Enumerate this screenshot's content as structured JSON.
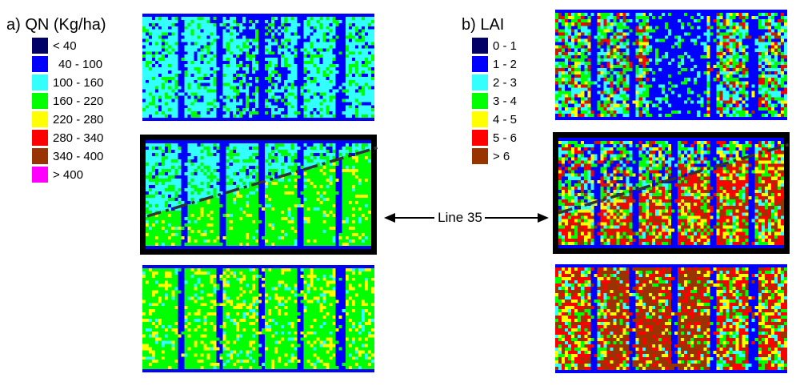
{
  "panel_a": {
    "title": "a) QN (Kg/ha)",
    "legend": [
      {
        "label": "< 40",
        "color": "#000066"
      },
      {
        "label": "40 - 100",
        "color": "#0000ff"
      },
      {
        "label": "100 - 160",
        "color": "#33ffff"
      },
      {
        "label": "160 - 220",
        "color": "#00ff00"
      },
      {
        "label": "220 - 280",
        "color": "#ffff00"
      },
      {
        "label": "280 - 340",
        "color": "#ff0000"
      },
      {
        "label": "340 - 400",
        "color": "#993300"
      },
      {
        "label": "> 400",
        "color": "#ff00ff"
      }
    ]
  },
  "panel_b": {
    "title": "b) LAI",
    "legend": [
      {
        "label": "0 - 1",
        "color": "#000066"
      },
      {
        "label": "1 - 2",
        "color": "#0000ff"
      },
      {
        "label": "2 - 3",
        "color": "#33ffff"
      },
      {
        "label": "3 - 4",
        "color": "#00ff00"
      },
      {
        "label": "4 - 5",
        "color": "#ffff00"
      },
      {
        "label": "5 - 6",
        "color": "#ff0000"
      },
      {
        "label": "> 6",
        "color": "#993300"
      }
    ]
  },
  "annotation": {
    "label": "Line 35"
  },
  "colors": {
    "highlight_border": "#000000",
    "dash_line": "#333333",
    "arrow": "#000000"
  }
}
